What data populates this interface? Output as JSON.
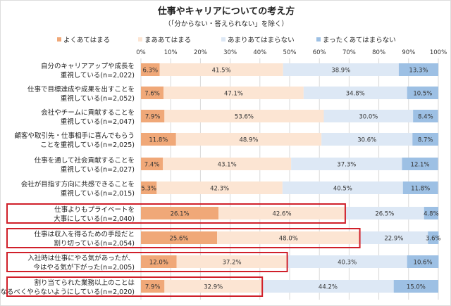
{
  "chart_data": {
    "type": "bar",
    "orientation": "horizontal",
    "stacked": true,
    "title": "仕事やキャリアについての考え方",
    "subtitle": "（「分からない・答えられない」を除く）",
    "xlim": [
      0,
      100
    ],
    "x_ticks": [
      "0%",
      "10%",
      "20%",
      "30%",
      "40%",
      "50%",
      "60%",
      "70%",
      "80%",
      "90%",
      "100%"
    ],
    "grid": true,
    "legend_position": "top",
    "series": [
      {
        "name": "よくあてはまる",
        "color": "#f0a878",
        "values": [
          6.3,
          7.6,
          7.9,
          11.8,
          7.4,
          5.3,
          26.1,
          25.6,
          12.0,
          7.9
        ]
      },
      {
        "name": "まああてはまる",
        "color": "#fce5d3",
        "values": [
          41.5,
          47.1,
          53.6,
          48.9,
          43.1,
          42.3,
          42.6,
          48.0,
          37.2,
          32.9
        ]
      },
      {
        "name": "あまりあてはまらない",
        "color": "#dde8f5",
        "values": [
          38.9,
          34.8,
          30.0,
          30.6,
          37.3,
          40.5,
          26.5,
          22.9,
          40.3,
          44.2
        ]
      },
      {
        "name": "まったくあてはまらない",
        "color": "#9dc0e4",
        "values": [
          13.3,
          10.5,
          8.4,
          8.7,
          12.1,
          11.8,
          4.8,
          3.6,
          10.6,
          15.0
        ]
      }
    ],
    "categories": [
      [
        "自分のキャリアアップや成長を",
        "重視している(n=2,022)"
      ],
      [
        "仕事で目標達成や成果を出すことを",
        "重視している(n=2,052)"
      ],
      [
        "会社やチームに貢献することを",
        "重視している(n=2,047)"
      ],
      [
        "顧客や取引先・仕事相手に喜んでもらう",
        "ことを重視している(n=2,025)"
      ],
      [
        "仕事を通して社会貢献することを",
        "重視している(n=2,027)"
      ],
      [
        "会社が目指す方向に共感できることを",
        "重視している(n=2,015)"
      ],
      [
        "仕事よりもプライベートを",
        "大事にしている(n=2,040)"
      ],
      [
        "仕事は収入を得るための手段だと",
        "割り切っている(n=2,054)"
      ],
      [
        "入社時は仕事にやる気があったが、",
        "今はやる気が下がった(n=2,005)"
      ],
      [
        "割り当てられた業務以上のことは",
        "なるべくやらないようにしている(n=2,020)"
      ]
    ],
    "highlighted_rows": [
      6,
      7,
      8,
      9
    ],
    "highlight_color": "#d0202a"
  }
}
